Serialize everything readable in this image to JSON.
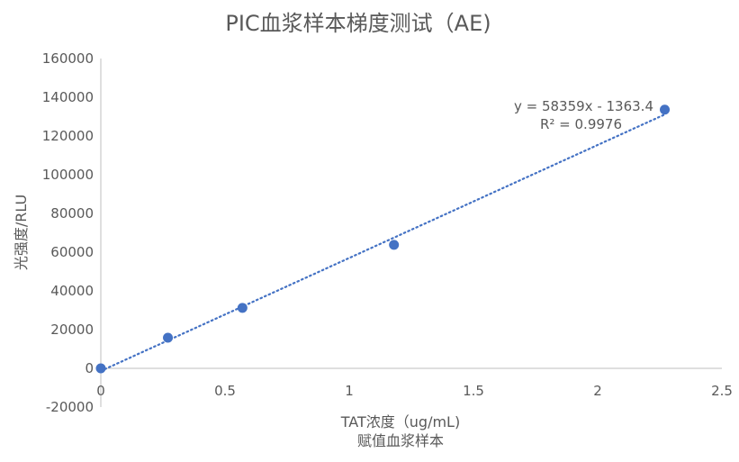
{
  "chart_data": {
    "type": "scatter",
    "title": "PIC血浆样本梯度测试（AE)",
    "xlabel_line1": "TAT浓度（ug/mL)",
    "xlabel_line2": "赋值血浆样本",
    "ylabel": "光强度/RLU",
    "xlim": [
      0,
      2.5
    ],
    "ylim": [
      -20000,
      160000
    ],
    "xticks": [
      0,
      0.5,
      1,
      1.5,
      2,
      2.5
    ],
    "xtick_labels": [
      "0",
      "0.5",
      "1",
      "1.5",
      "2",
      "2.5"
    ],
    "yticks": [
      -20000,
      0,
      20000,
      40000,
      60000,
      80000,
      100000,
      120000,
      140000,
      160000
    ],
    "ytick_labels": [
      "-20000",
      "0",
      "20000",
      "40000",
      "60000",
      "80000",
      "100000",
      "120000",
      "140000",
      "160000"
    ],
    "gridlines": false,
    "points": [
      {
        "x": 0,
        "y": 0
      },
      {
        "x": 0.27,
        "y": 15800
      },
      {
        "x": 0.57,
        "y": 31200
      },
      {
        "x": 1.18,
        "y": 63800
      },
      {
        "x": 2.27,
        "y": 133600
      }
    ],
    "trendline": {
      "type": "linear",
      "slope": 58359,
      "intercept": -1363.4,
      "equation_label": "y = 58359x - 1363.4",
      "r2_label": "R² = 0.9976",
      "style": "dotted"
    },
    "colors": {
      "marker": "#4472C4",
      "trendline": "#4472C4",
      "axis": "#BFBFBF",
      "text": "#595959"
    }
  }
}
